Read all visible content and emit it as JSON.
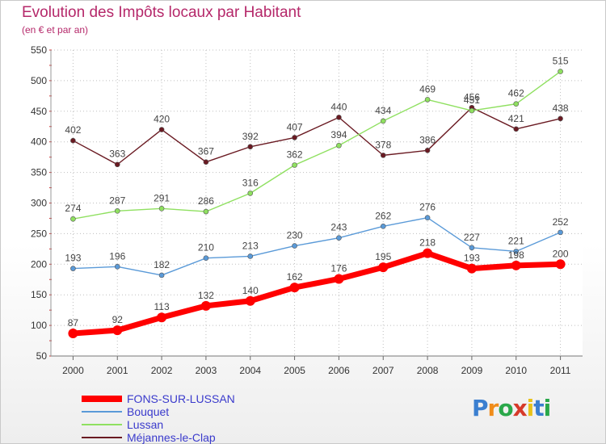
{
  "chart_data": {
    "type": "line",
    "title": "Evolution des Impôts locaux par Habitant",
    "subtitle": "(en € et par an)",
    "xlabel": "",
    "ylabel": "",
    "ylim": [
      50,
      550
    ],
    "y_ticks": [
      50,
      100,
      150,
      200,
      250,
      300,
      350,
      400,
      450,
      500,
      550
    ],
    "categories": [
      "2000",
      "2001",
      "2002",
      "2003",
      "2004",
      "2005",
      "2006",
      "2007",
      "2008",
      "2009",
      "2010",
      "2011"
    ],
    "grid": "horizontal",
    "legend_position": "bottom-left",
    "series": [
      {
        "name": "FONS-SUR-LUSSAN",
        "color": "#ff0000",
        "label_color": "#3a3acc",
        "bold": true,
        "values": [
          87,
          92,
          113,
          132,
          140,
          162,
          176,
          195,
          218,
          193,
          198,
          200
        ]
      },
      {
        "name": "Bouquet",
        "color": "#5a9ad8",
        "label_color": "#3a3acc",
        "bold": false,
        "values": [
          193,
          196,
          182,
          210,
          213,
          230,
          243,
          262,
          276,
          227,
          221,
          252
        ]
      },
      {
        "name": "Lussan",
        "color": "#8fe060",
        "label_color": "#3a3acc",
        "bold": false,
        "values": [
          274,
          287,
          291,
          286,
          316,
          362,
          394,
          434,
          469,
          451,
          462,
          515
        ]
      },
      {
        "name": "Méjannes-le-Clap",
        "color": "#6a1a22",
        "label_color": "#3a3acc",
        "bold": false,
        "values": [
          402,
          363,
          420,
          367,
          392,
          407,
          440,
          378,
          386,
          456,
          421,
          438
        ]
      }
    ],
    "data_labels": [
      [
        "87",
        "92",
        "113",
        "132",
        "140",
        "162",
        "176",
        "195",
        "218",
        "193",
        "198",
        "200"
      ],
      [
        "193",
        "196",
        "182",
        "210",
        "213",
        "230",
        "243",
        "262",
        "276",
        "227",
        "221",
        "252"
      ],
      [
        "274",
        "287",
        "291",
        "286",
        "316",
        "362",
        "394",
        "434",
        "469",
        "451",
        "462",
        "515"
      ],
      [
        "402",
        "363",
        "420",
        "367",
        "392",
        "407",
        "440",
        "378",
        "386",
        "456",
        "421",
        "438"
      ]
    ]
  },
  "brand": {
    "name": "Proxiti",
    "letters": [
      "P",
      "r",
      "o",
      "x",
      "i",
      "t",
      "i"
    ],
    "colors": [
      "#3b7fd0",
      "#f08c1a",
      "#2aa84a",
      "#d63a2a",
      "#e8c21a",
      "#3b7fd0",
      "#2aa84a"
    ]
  }
}
